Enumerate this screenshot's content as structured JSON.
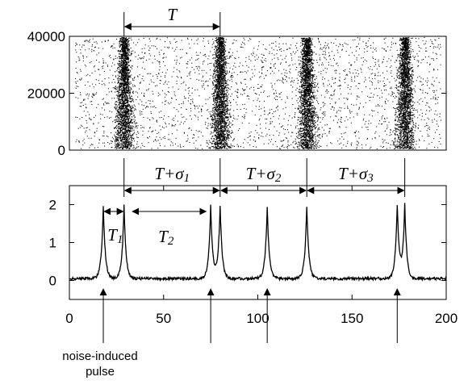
{
  "chart_data": [
    {
      "type": "scatter",
      "subtype": "raster",
      "xlim": [
        0,
        200
      ],
      "ylim": [
        0,
        40000
      ],
      "yticks": [
        "0",
        "20000",
        "40000"
      ],
      "band_centers_x": [
        29,
        80,
        126,
        178
      ],
      "period_label": "T",
      "period_span_x": [
        29,
        80
      ]
    },
    {
      "type": "line",
      "xlim": [
        0,
        200
      ],
      "ylim": [
        -0.5,
        2.5
      ],
      "xticks": [
        "0",
        "50",
        "100",
        "150",
        "200"
      ],
      "yticks": [
        "0",
        "1",
        "2"
      ],
      "baseline": 0.05,
      "peaks": [
        {
          "x": 18,
          "y": 1.97
        },
        {
          "x": 29,
          "y": 1.97
        },
        {
          "x": 75,
          "y": 1.97
        },
        {
          "x": 80,
          "y": 1.97
        },
        {
          "x": 105,
          "y": 1.97
        },
        {
          "x": 126,
          "y": 1.97
        },
        {
          "x": 174,
          "y": 1.97
        },
        {
          "x": 178,
          "y": 1.97
        }
      ],
      "interval_labels": [
        {
          "text": "T+σ",
          "sub": "1",
          "from": 29,
          "to": 80
        },
        {
          "text": "T+σ",
          "sub": "2",
          "from": 80,
          "to": 126
        },
        {
          "text": "T+σ",
          "sub": "3",
          "from": 126,
          "to": 178
        }
      ],
      "short_intervals": [
        {
          "text": "T",
          "sub": "1",
          "from": 18,
          "to": 29
        },
        {
          "text": "T",
          "sub": "2",
          "from": 33,
          "to": 73
        }
      ],
      "noise_pulse_x": [
        18,
        75,
        105,
        174
      ],
      "annotation": [
        "noise-induced",
        "pulse"
      ]
    }
  ]
}
